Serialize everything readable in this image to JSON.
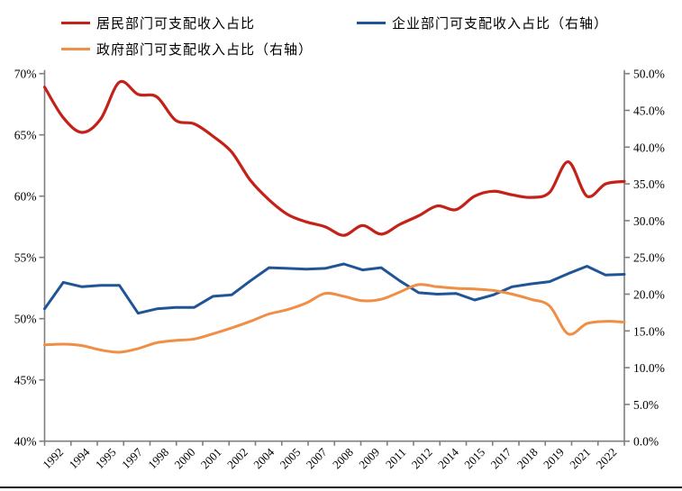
{
  "legend": [
    {
      "label": "居民部门可支配收入占比",
      "color": "#C42119"
    },
    {
      "label": "企业部门可支配收入占比（右轴）",
      "color": "#1F5597"
    },
    {
      "label": "政府部门可支配收入占比（右轴）",
      "color": "#EF8E44"
    }
  ],
  "colors": {
    "axis": "#7F7F7F",
    "tick_label": "#000000",
    "divider": "#111111",
    "background": "#FFFFFF"
  },
  "chart_data": {
    "type": "line",
    "x": [
      1992,
      1993,
      1994,
      1995,
      1996,
      1997,
      1998,
      1999,
      2000,
      2001,
      2002,
      2003,
      2004,
      2005,
      2006,
      2007,
      2008,
      2009,
      2010,
      2011,
      2012,
      2013,
      2014,
      2015,
      2016,
      2017,
      2018,
      2019,
      2020,
      2021,
      2022,
      2023
    ],
    "x_tick_labels": [
      "1992",
      "1994",
      "1995",
      "1997",
      "1998",
      "2000",
      "2001",
      "2002",
      "2004",
      "2005",
      "2007",
      "2008",
      "2009",
      "2011",
      "2012",
      "2014",
      "2015",
      "2017",
      "2018",
      "2019",
      "2021",
      "2022"
    ],
    "left_axis": {
      "min": 40,
      "max": 70,
      "tick_labels": [
        "40%",
        "45%",
        "50%",
        "55%",
        "60%",
        "65%",
        "70%"
      ]
    },
    "right_axis": {
      "min": 0,
      "max": 50,
      "tick_labels": [
        "0.0%",
        "5.0%",
        "10.0%",
        "15.0%",
        "20.0%",
        "25.0%",
        "30.0%",
        "35.0%",
        "40.0%",
        "45.0%",
        "50.0%"
      ]
    },
    "grid": false,
    "legend_position": "top-left",
    "series": [
      {
        "name": "居民部门可支配收入占比",
        "axis": "left",
        "color": "#C42119",
        "smooth": true,
        "width": 3.2,
        "values": [
          68.9,
          66.4,
          65.2,
          66.3,
          69.3,
          68.3,
          68.1,
          66.2,
          65.9,
          64.9,
          63.6,
          61.3,
          59.7,
          58.5,
          57.9,
          57.5,
          56.8,
          57.6,
          56.9,
          57.7,
          58.4,
          59.2,
          58.9,
          60.0,
          60.4,
          60.1,
          59.9,
          60.3,
          62.8,
          60.0,
          61.0,
          61.2
        ]
      },
      {
        "name": "企业部门可支配收入占比（右轴）",
        "axis": "right",
        "color": "#1F5597",
        "smooth": false,
        "width": 3,
        "values": [
          18.0,
          21.6,
          21.0,
          21.2,
          21.2,
          17.4,
          18.0,
          18.2,
          18.2,
          19.7,
          19.9,
          21.8,
          23.6,
          23.5,
          23.4,
          23.5,
          24.1,
          23.3,
          23.6,
          21.8,
          20.2,
          20.0,
          20.1,
          19.2,
          19.9,
          21.0,
          21.4,
          21.7,
          22.8,
          23.8,
          22.6,
          22.7
        ]
      },
      {
        "name": "政府部门可支配收入占比（右轴）",
        "axis": "right",
        "color": "#EF8E44",
        "smooth": true,
        "width": 3,
        "values": [
          13.1,
          13.2,
          13.0,
          12.4,
          12.1,
          12.6,
          13.4,
          13.7,
          13.9,
          14.6,
          15.4,
          16.3,
          17.3,
          17.9,
          18.8,
          20.1,
          19.7,
          19.1,
          19.3,
          20.3,
          21.3,
          21.0,
          20.8,
          20.7,
          20.5,
          20.0,
          19.3,
          18.4,
          14.6,
          16.0,
          16.3,
          16.2
        ]
      }
    ]
  }
}
